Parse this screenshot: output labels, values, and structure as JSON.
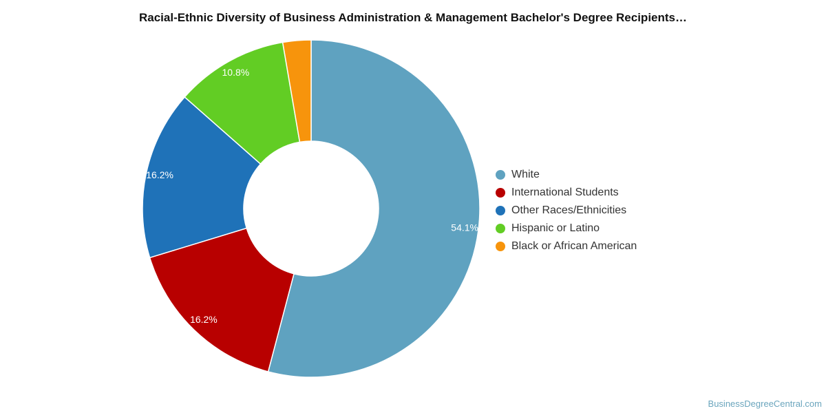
{
  "chart_data": {
    "type": "pie",
    "variant": "donut",
    "title": "Racial-Ethnic Diversity of Business Administration & Management Bachelor's Degree Recipients…",
    "unit": "%",
    "legend_position": "right",
    "slices": [
      {
        "name": "White",
        "value": 54.1,
        "label": "54.1%",
        "color": "#5fa2c0"
      },
      {
        "name": "International Students",
        "value": 16.2,
        "label": "16.2%",
        "color": "#b80000"
      },
      {
        "name": "Other Races/Ethnicities",
        "value": 16.2,
        "label": "16.2%",
        "color": "#1f72b8"
      },
      {
        "name": "Hispanic or Latino",
        "value": 10.8,
        "label": "10.8%",
        "color": "#62cd24"
      },
      {
        "name": "Black or African American",
        "value": 2.7,
        "label": "",
        "color": "#f7940c"
      }
    ]
  },
  "watermark": "BusinessDegreeCentral.com"
}
